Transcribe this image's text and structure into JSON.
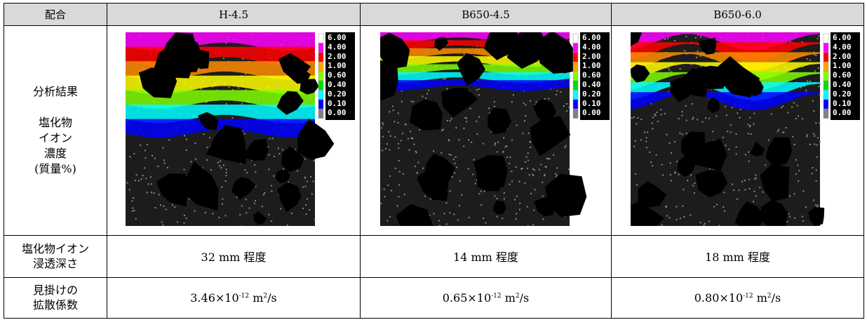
{
  "header": {
    "col0": "配合",
    "col1": "H-4.5",
    "col2": "B650-4.5",
    "col3": "B650-6.0"
  },
  "row_analysis": {
    "label_line1": "分析結果",
    "label_line2": "塩化物",
    "label_line3": "イオン",
    "label_line4": "濃度",
    "label_line5": "(質量%)"
  },
  "legend_levels": [
    "6.00",
    "4.00",
    "2.00",
    "1.00",
    "0.60",
    "0.40",
    "0.20",
    "0.10",
    "0.00"
  ],
  "legend_colors": [
    "#ffffff",
    "#ff00ff",
    "#ff0000",
    "#ffa500",
    "#80ff00",
    "#00e000",
    "#00ffff",
    "#0000ff",
    "#808080",
    "#000000"
  ],
  "row_depth": {
    "label_line1": "塩化物イオン",
    "label_line2": "浸透深さ",
    "values": [
      "32 mm 程度",
      "14 mm 程度",
      "18 mm 程度"
    ]
  },
  "row_diffusion": {
    "label_line1": "見掛けの",
    "label_line2": "拡散係数",
    "values": [
      {
        "coef": "3.46×10",
        "exp": "-12",
        "unit": " m",
        "unit_exp": "2",
        "tail": "/s"
      },
      {
        "coef": "0.65×10",
        "exp": "-12",
        "unit": " m",
        "unit_exp": "2",
        "tail": "/s"
      },
      {
        "coef": "0.80×10",
        "exp": "-12",
        "unit": " m",
        "unit_exp": "2",
        "tail": "/s"
      }
    ]
  }
}
